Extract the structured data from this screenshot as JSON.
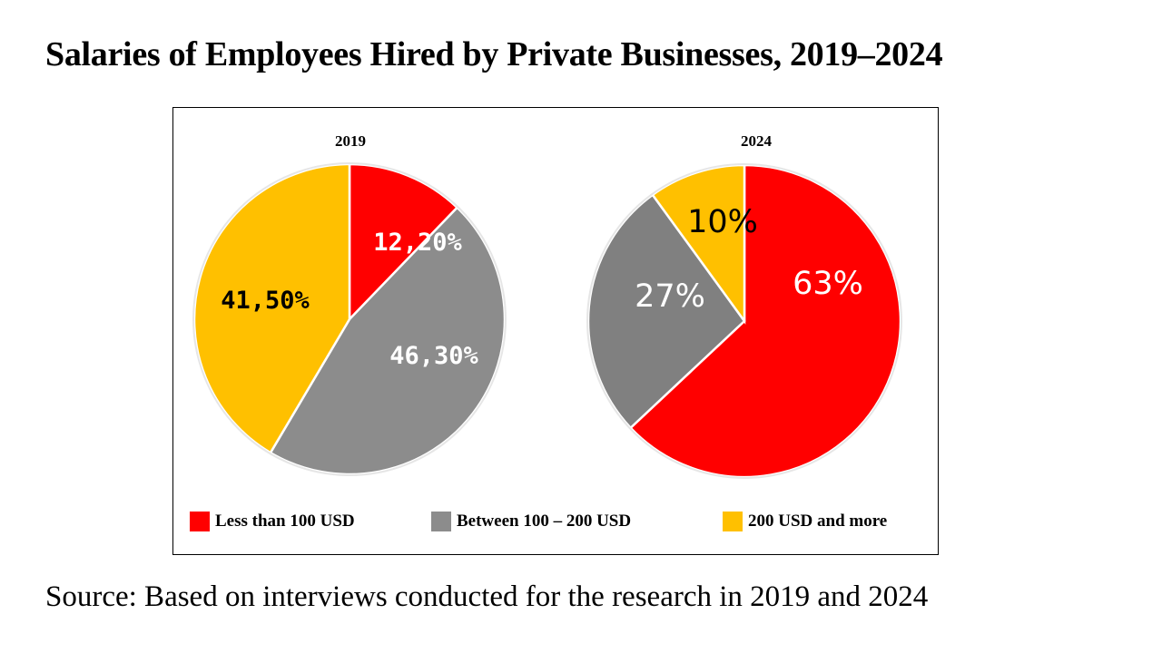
{
  "title": "Salaries of Employees Hired by Private Businesses, 2019–2024",
  "source": "Source: Based on interviews conducted for the research in 2019 and 2024",
  "colors": {
    "less_than_100": "#ff0000",
    "between_100_200": "#8c8c8c",
    "over_200": "#ffc000",
    "slice_border": "#ffffff",
    "frame": "#000000"
  },
  "legend": [
    {
      "label": "Less than 100 USD",
      "color": "#ff0000"
    },
    {
      "label": "Between 100 – 200 USD",
      "color": "#8c8c8c"
    },
    {
      "label": "200 USD and more",
      "color": "#ffc000"
    }
  ],
  "chart_data": [
    {
      "type": "pie",
      "title": "2019",
      "start_angle_deg": 0,
      "direction": "clockwise",
      "slices": [
        {
          "category": "Less than 100 USD",
          "value": 12.2,
          "label": "12,20%",
          "color": "#ff0000",
          "label_color": "#ffffff"
        },
        {
          "category": "Between 100 – 200 USD",
          "value": 46.3,
          "label": "46,30%",
          "color": "#8c8c8c",
          "label_color": "#ffffff"
        },
        {
          "category": "200 USD and more",
          "value": 41.5,
          "label": "41,50%",
          "color": "#ffc000",
          "label_color": "#000000"
        }
      ]
    },
    {
      "type": "pie",
      "title": "2024",
      "start_angle_deg": 0,
      "direction": "clockwise",
      "slices": [
        {
          "category": "Less than 100 USD",
          "value": 63,
          "label": "63%",
          "color": "#ff0000",
          "label_color": "#ffffff"
        },
        {
          "category": "Between 100 – 200 USD",
          "value": 27,
          "label": "27%",
          "color": "#808080",
          "label_color": "#ffffff"
        },
        {
          "category": "200 USD and more",
          "value": 10,
          "label": "10%",
          "color": "#ffc000",
          "label_color": "#000000"
        }
      ]
    }
  ]
}
